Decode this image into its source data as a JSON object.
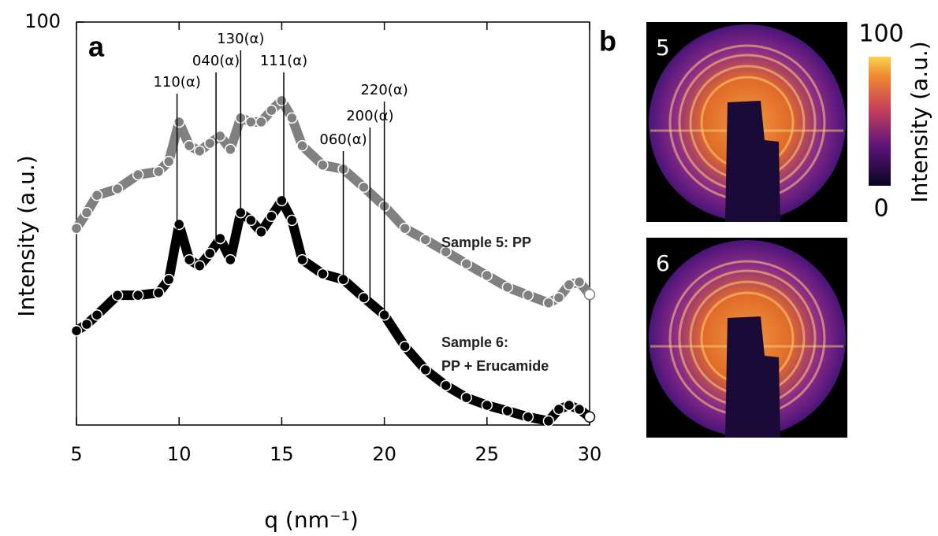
{
  "chart_data": {
    "type": "scatter",
    "label": "a",
    "xlabel": "q (nm⁻¹)",
    "ylabel": "Intensity (a.u.)",
    "xlim": [
      5,
      30
    ],
    "xticks": [
      5,
      10,
      15,
      20,
      25,
      30
    ],
    "ylim": [
      0,
      100
    ],
    "yticks": [
      100
    ],
    "x": [
      5,
      5.5,
      6,
      7,
      8,
      9,
      9.5,
      10,
      10.5,
      11,
      11.5,
      12,
      12.5,
      13,
      13.5,
      14,
      14.5,
      15,
      15.5,
      16,
      17,
      18,
      19,
      20,
      21,
      22,
      23,
      24,
      25,
      26,
      27,
      28,
      28.5,
      29,
      29.5,
      30
    ],
    "series": [
      {
        "name": "Sample 5: PP",
        "color": "#808080",
        "values": [
          48.8,
          52.7,
          57,
          58.6,
          62.1,
          62.9,
          65.4,
          75.2,
          69.3,
          68,
          69.9,
          71.7,
          68.4,
          76.2,
          75.2,
          75.2,
          78.1,
          80.5,
          76.2,
          69.3,
          64.5,
          63.5,
          59,
          54.3,
          48.8,
          46,
          43,
          40,
          37.1,
          34.2,
          32.2,
          30.3,
          31.6,
          34.8,
          35.5,
          32.4
        ]
      },
      {
        "name": "Sample 6:\nPP + Erucamide",
        "color": "#000000",
        "values": [
          23.4,
          25,
          27.3,
          32.2,
          32.2,
          32.8,
          36.1,
          49.8,
          41,
          39.5,
          42.6,
          46.3,
          41,
          52.7,
          50.8,
          47.9,
          51.8,
          55.7,
          50.8,
          41,
          37.5,
          36.1,
          31.6,
          27.3,
          19.5,
          13.7,
          9.8,
          6.8,
          4.9,
          3.5,
          2,
          1,
          3.9,
          4.9,
          3.9,
          2
        ]
      }
    ],
    "annotations": [
      {
        "text": "110(α)",
        "x": 9.9
      },
      {
        "text": "040(α)",
        "x": 11.8
      },
      {
        "text": "130(α)",
        "x": 13
      },
      {
        "text": "111(α)",
        "x": 15.1
      },
      {
        "text": "060(α)",
        "x": 18
      },
      {
        "text": "200(α)",
        "x": 19.3
      },
      {
        "text": "220(α)",
        "x": 20
      }
    ]
  },
  "panel_b": {
    "label": "b",
    "images": [
      {
        "label": "5"
      },
      {
        "label": "6"
      }
    ],
    "colorbar": {
      "label": "Intensity (a.u.)",
      "lim": [
        0,
        100
      ],
      "ticks": [
        0,
        100
      ]
    }
  }
}
